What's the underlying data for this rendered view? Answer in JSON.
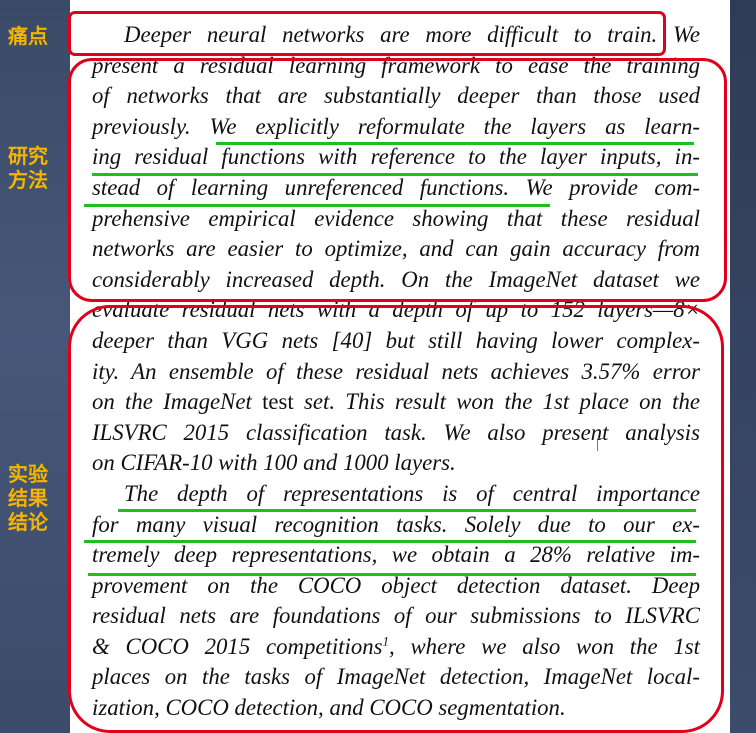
{
  "labels": {
    "pain_point": "痛点",
    "method_line1": "研究",
    "method_line2": "方法",
    "result_line1": "实验",
    "result_line2": "结果",
    "result_line3": "结论"
  },
  "abstract_lines": [
    "Deeper neural networks are more difficult to train.  We",
    "present a residual learning framework to ease the training",
    "of networks that are substantially deeper than those used",
    "previously.  We explicitly reformulate the layers as learn-",
    "ing residual functions with reference to the layer inputs, in-",
    "stead of learning unreferenced functions.  We provide com-",
    "prehensive empirical evidence showing that these residual",
    "networks are easier to optimize, and can gain accuracy from",
    "considerably increased depth.  On the ImageNet dataset we",
    "evaluate residual nets with a depth of up to 152 layers—8×",
    "deeper than VGG nets [40] but still having lower complex-",
    "ity.  An ensemble of these residual nets achieves 3.57% error",
    "on the ImageNet",
    "ILSVRC 2015 classification task.  We also present analysis",
    "on CIFAR-10 with 100 and 1000 layers.",
    "The depth of representations is of central importance",
    "for many visual recognition tasks.  Solely due to our ex-",
    "tremely deep representations, we obtain a 28% relative im-",
    "provement on the COCO object detection dataset.  Deep",
    "residual nets are foundations of our submissions to ILSVRC",
    "& COCO 2015 competitions",
    ", where we also won the 1st",
    "places on the tasks of ImageNet detection, ImageNet local-",
    "ization, COCO detection, and COCO segmentation."
  ],
  "line13_upright": "test",
  "line13_tail": "set.  This result won the 1st place on the",
  "footnote_mark": "1",
  "colors": {
    "label": "#f5b400",
    "box": "#e0001b",
    "underline": "#1fbd1f",
    "background": "#46577a"
  }
}
